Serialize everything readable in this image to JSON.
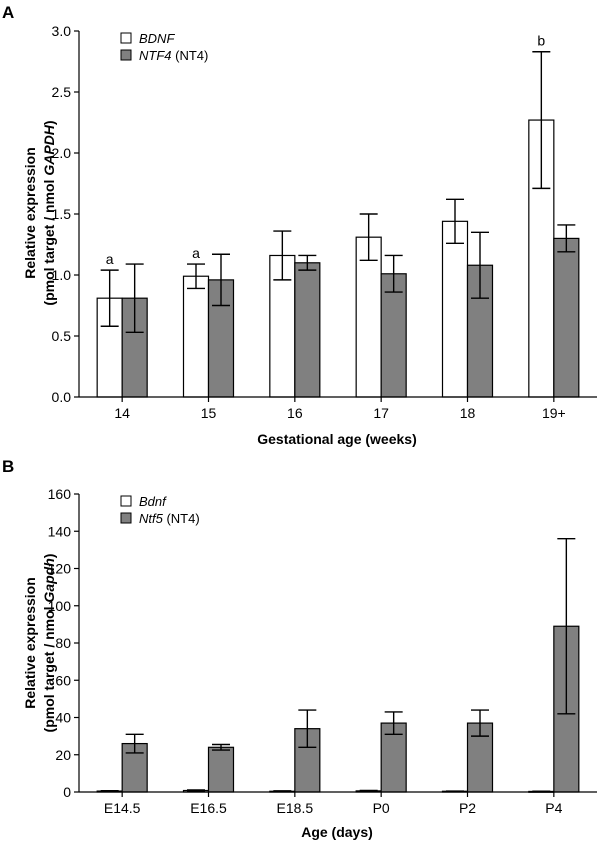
{
  "chart_data": [
    {
      "panel": "A",
      "type": "bar",
      "xlabel": "Gestational age (weeks)",
      "ylabel_line1": "Relative expression",
      "ylabel_line2_prefix": "(pmol target / nmol ",
      "ylabel_line2_gene": "GAPDH",
      "ylabel_line2_suffix": ")",
      "ylim": [
        0,
        3.0
      ],
      "yticks": [
        "0.0",
        "0.5",
        "1.0",
        "1.5",
        "2.0",
        "2.5",
        "3.0"
      ],
      "categories": [
        "14",
        "15",
        "16",
        "17",
        "18",
        "19+"
      ],
      "series": [
        {
          "name": "BDNF",
          "extra": "",
          "color": "#ffffff",
          "values": [
            0.81,
            0.99,
            1.16,
            1.31,
            1.44,
            2.27
          ],
          "errors": [
            0.23,
            0.1,
            0.2,
            0.19,
            0.18,
            0.56
          ]
        },
        {
          "name": "NTF4",
          "extra": " (NT4)",
          "color": "#808080",
          "values": [
            0.81,
            0.96,
            1.1,
            1.01,
            1.08,
            1.3
          ],
          "errors": [
            0.28,
            0.21,
            0.06,
            0.15,
            0.27,
            0.11
          ]
        }
      ],
      "annotations": [
        {
          "category": 0,
          "series": 0,
          "text": "a"
        },
        {
          "category": 1,
          "series": 0,
          "text": "a"
        },
        {
          "category": 5,
          "series": 0,
          "text": "b"
        }
      ]
    },
    {
      "panel": "B",
      "type": "bar",
      "xlabel": "Age (days)",
      "ylabel_line1": "Relative expression",
      "ylabel_line2_prefix": "(pmol target / nmol ",
      "ylabel_line2_gene": "Gapdh",
      "ylabel_line2_suffix": ")",
      "ylim": [
        0,
        160
      ],
      "yticks": [
        "0",
        "20",
        "40",
        "60",
        "80",
        "100",
        "120",
        "140",
        "160"
      ],
      "categories": [
        "E14.5",
        "E16.5",
        "E18.5",
        "P0",
        "P2",
        "P4"
      ],
      "series": [
        {
          "name": "Bdnf",
          "extra": "",
          "color": "#ffffff",
          "values": [
            0.5,
            0.8,
            0.4,
            0.6,
            0.4,
            0.3
          ],
          "errors": [
            0.2,
            0.3,
            0.2,
            0.2,
            0.1,
            0.1
          ]
        },
        {
          "name": "Ntf5",
          "extra": " (NT4)",
          "color": "#808080",
          "values": [
            26,
            24,
            34,
            37,
            37,
            89
          ],
          "errors": [
            5,
            1.5,
            10,
            6,
            7,
            47
          ]
        }
      ],
      "annotations": []
    }
  ]
}
